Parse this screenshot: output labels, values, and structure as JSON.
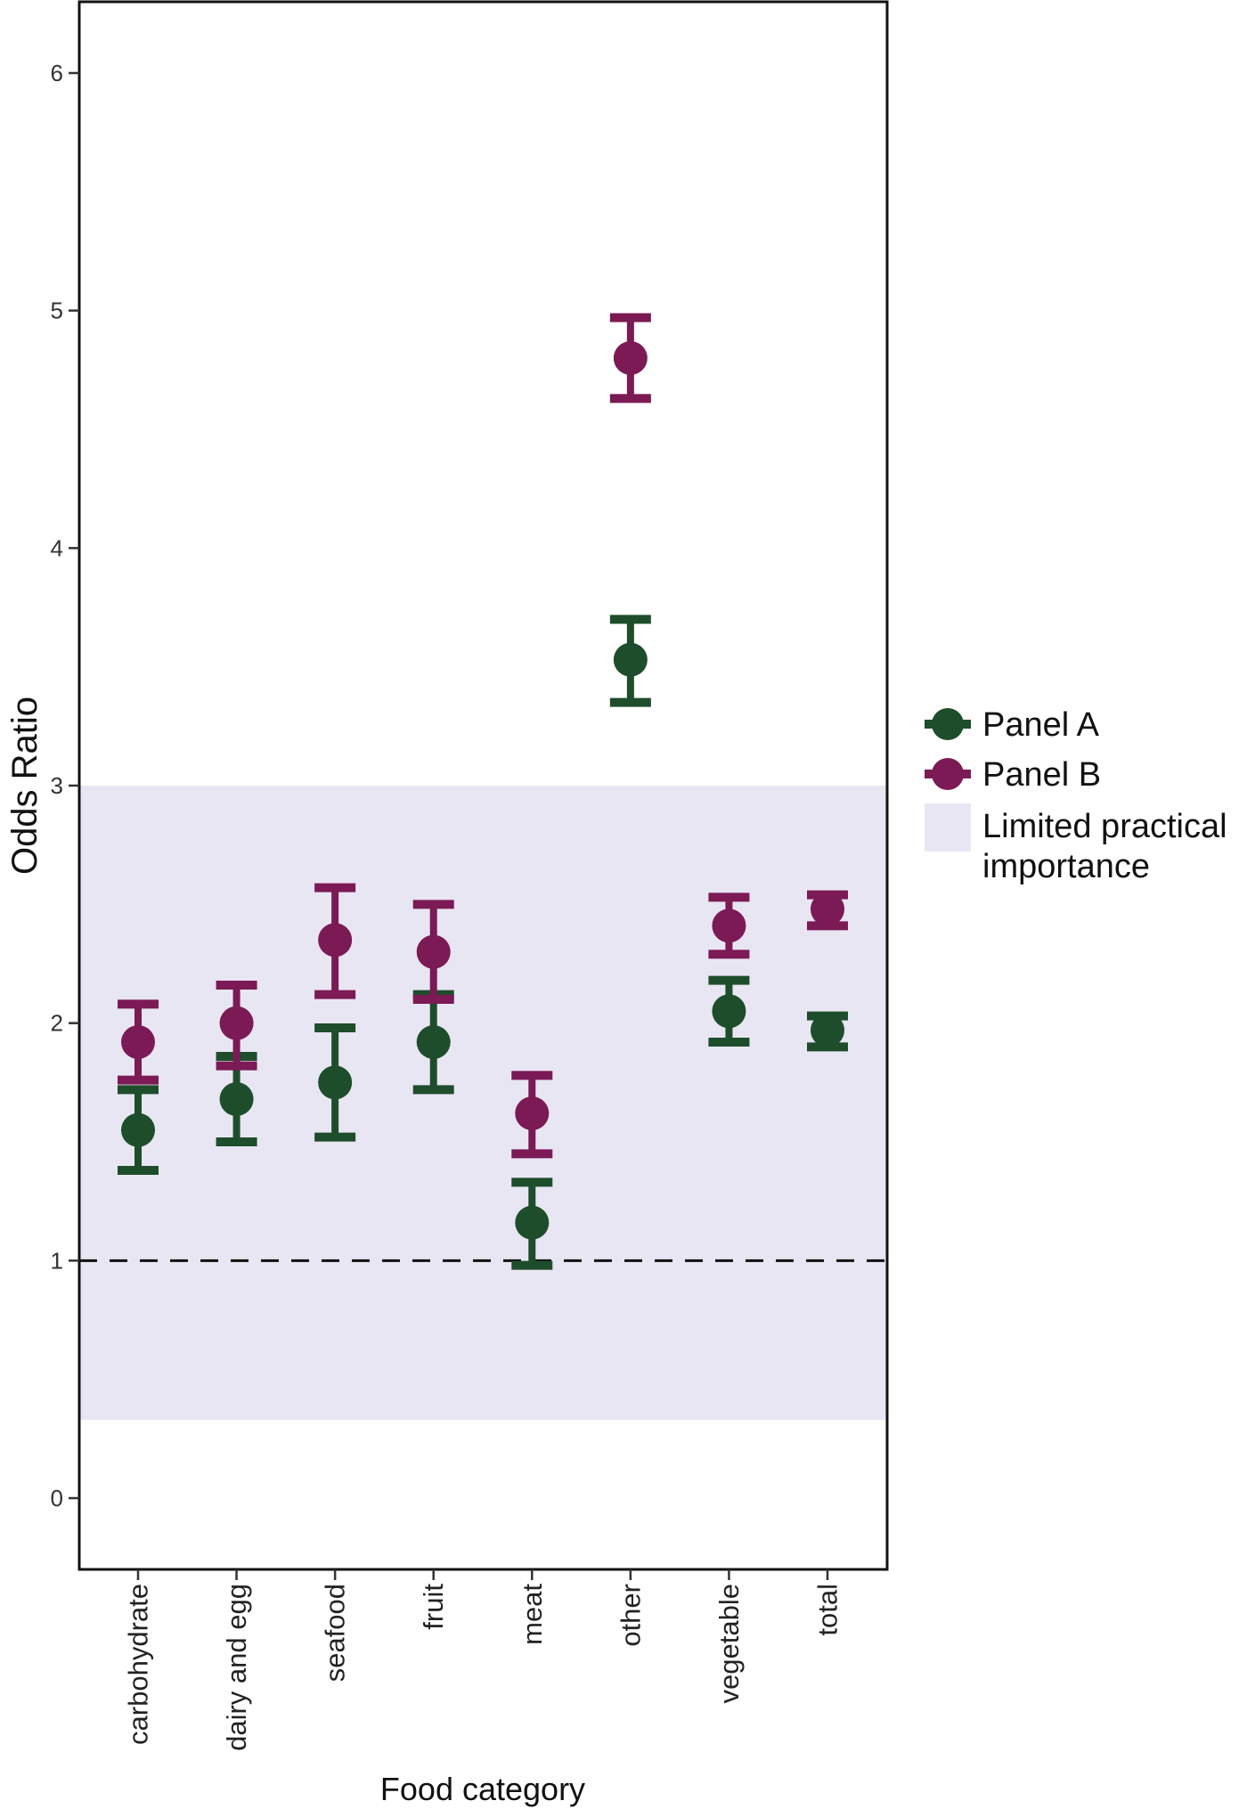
{
  "chart_data": {
    "type": "scatter",
    "title": "",
    "xlabel": "Food category",
    "ylabel": "Odds Ratio",
    "categories": [
      "carbohydrate",
      "dairy and egg",
      "seafood",
      "fruit",
      "meat",
      "other",
      "vegetable",
      "total"
    ],
    "ylim": [
      -0.3,
      6.3
    ],
    "yticks": [
      0,
      1,
      2,
      3,
      4,
      5,
      6
    ],
    "reference_line": {
      "y": 1,
      "style": "dashed",
      "color": "#111111"
    },
    "band": {
      "label": "Limited practical importance",
      "y_range": [
        0.33,
        3
      ],
      "color": "#e9e6f3"
    },
    "grid": false,
    "legend_position": "right",
    "legend": [
      {
        "label": "Panel A",
        "kind": "series",
        "color": "#1e4d2b"
      },
      {
        "label": "Panel B",
        "kind": "series",
        "color": "#7b1a55"
      },
      {
        "label": "Limited practical importance",
        "label_lines": [
          "Limited practical",
          "importance"
        ],
        "kind": "band",
        "color": "#e9e6f3"
      }
    ],
    "series": [
      {
        "name": "Panel A",
        "color": "#1e4d2b",
        "values": [
          1.55,
          1.68,
          1.75,
          1.92,
          1.16,
          3.53,
          2.05,
          1.97
        ],
        "lower": [
          1.38,
          1.5,
          1.52,
          1.72,
          0.98,
          3.35,
          1.92,
          1.9
        ],
        "upper": [
          1.72,
          1.86,
          1.98,
          2.12,
          1.33,
          3.7,
          2.18,
          2.03
        ]
      },
      {
        "name": "Panel B",
        "color": "#7b1a55",
        "values": [
          1.92,
          2.0,
          2.35,
          2.3,
          1.62,
          4.8,
          2.41,
          2.48
        ],
        "lower": [
          1.76,
          1.82,
          2.12,
          2.1,
          1.45,
          4.63,
          2.29,
          2.41
        ],
        "upper": [
          2.08,
          2.16,
          2.57,
          2.5,
          1.78,
          4.97,
          2.53,
          2.54
        ]
      }
    ]
  }
}
